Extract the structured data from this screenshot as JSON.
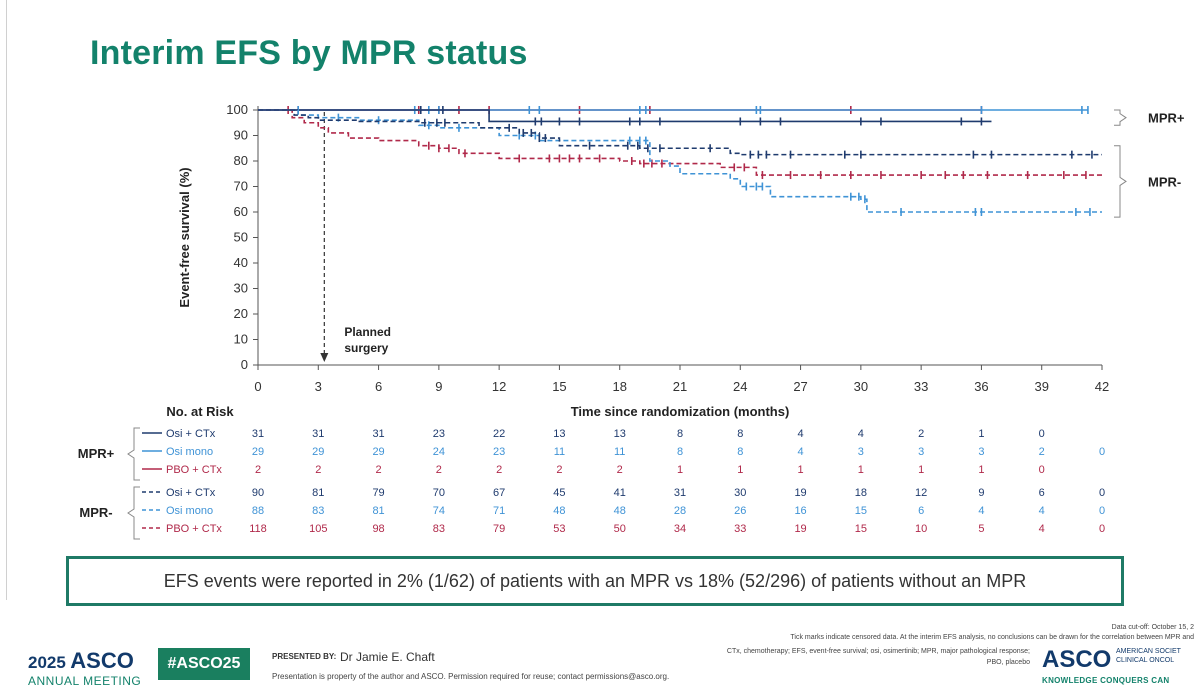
{
  "slide": {
    "title": "Interim EFS by MPR status",
    "callout": "EFS events were reported in 2% (1/62) of patients with an MPR vs 18% (52/296) of patients without an MPR",
    "data_cutoff": "Data cut-off: October 15, 2",
    "tick_note": "Tick marks indicate censored data. At the interim EFS analysis, no conclusions can be drawn for the correlation between MPR and",
    "abbrev_line1": "CTx, chemotherapy; EFS, event-free survival; osi, osimertinib; MPR, major pathological response;",
    "abbrev_line2": "PBO, placebo"
  },
  "footer": {
    "year": "2025",
    "asco": "ASCO",
    "annual_meeting": "ANNUAL MEETING",
    "hashtag": "#ASCO25",
    "presented_by": "PRESENTED BY:",
    "presenter": "Dr Jamie E. Chaft",
    "property": "Presentation is property of the author and ASCO. Permission required for reuse; contact permissions@asco.org.",
    "asco_right": "ASCO",
    "asco_right_sub1": "AMERICAN SOCIET",
    "asco_right_sub2": "CLINICAL ONCOL",
    "knowledge": "KNOWLEDGE CONQUERS CAN"
  },
  "colors": {
    "title_green": "#13826b",
    "osi_ctx": "#1f3b6e",
    "osi_mono": "#3f93d6",
    "pbo_ctx": "#b0294a"
  },
  "chart_data": {
    "type": "line",
    "ylabel": "Event-free survival (%)",
    "xlabel": "Time since randomization (months)",
    "xlim": [
      0,
      42
    ],
    "ylim": [
      0,
      100
    ],
    "xticks": [
      "0",
      "3",
      "6",
      "9",
      "12",
      "15",
      "18",
      "21",
      "24",
      "27",
      "30",
      "33",
      "36",
      "39",
      "42"
    ],
    "yticks": [
      "0",
      "10",
      "20",
      "30",
      "40",
      "50",
      "60",
      "70",
      "80",
      "90",
      "100"
    ],
    "annotation": "Planned surgery",
    "annotation_x": 3.3,
    "groups": [
      {
        "label": "MPR+",
        "y_range": [
          94,
          100
        ]
      },
      {
        "label": "MPR-",
        "y_range": [
          58,
          86
        ]
      }
    ],
    "series": [
      {
        "name": "Osi + CTx",
        "group": "MPR+",
        "dash": false,
        "color": "#1f3b6e",
        "steps": [
          [
            0,
            100
          ],
          [
            11.5,
            100
          ],
          [
            11.5,
            95.5
          ],
          [
            36.5,
            95.5
          ]
        ],
        "censors": [
          8.1,
          9.2,
          13.8,
          14.1,
          15,
          16,
          18.5,
          19,
          20,
          24,
          25,
          26,
          30,
          31,
          35,
          36
        ]
      },
      {
        "name": "Osi mono",
        "group": "MPR+",
        "dash": false,
        "color": "#3f93d6",
        "steps": [
          [
            0,
            100
          ],
          [
            41.3,
            100
          ]
        ],
        "censors": [
          2,
          7.8,
          8.5,
          9,
          13.5,
          14,
          19,
          19.3,
          24.8,
          25,
          36,
          41,
          41.3
        ]
      },
      {
        "name": "PBO + CTx",
        "group": "MPR+",
        "dash": false,
        "color": "#b0294a",
        "steps": [
          [
            0,
            100
          ],
          [
            36,
            100
          ]
        ],
        "censors": [
          1.5,
          2,
          8,
          9,
          10,
          11.5,
          16,
          19.5,
          29.5,
          36
        ]
      },
      {
        "name": "Osi + CTx",
        "group": "MPR-",
        "dash": true,
        "color": "#1f3b6e",
        "steps": [
          [
            0,
            100
          ],
          [
            1.8,
            100
          ],
          [
            1.8,
            98
          ],
          [
            2.5,
            97
          ],
          [
            3,
            96
          ],
          [
            5,
            95.5
          ],
          [
            8,
            95
          ],
          [
            11,
            93
          ],
          [
            13,
            91
          ],
          [
            14,
            89
          ],
          [
            15,
            86
          ],
          [
            18,
            86
          ],
          [
            19,
            85
          ],
          [
            21,
            85
          ],
          [
            23.5,
            83
          ],
          [
            24,
            82.5
          ],
          [
            42,
            82.5
          ]
        ],
        "censors": [
          8.3,
          8.9,
          9.3,
          12.5,
          13.2,
          13.6,
          14,
          14.3,
          16.5,
          18.4,
          18.9,
          19.4,
          20,
          22.5,
          24.5,
          24.9,
          25.3,
          26.5,
          29.2,
          30,
          35.6,
          36.5,
          40.5,
          41.5
        ]
      },
      {
        "name": "Osi mono",
        "group": "MPR-",
        "dash": true,
        "color": "#3f93d6",
        "steps": [
          [
            0,
            100
          ],
          [
            2,
            98
          ],
          [
            3,
            97
          ],
          [
            5,
            96
          ],
          [
            8,
            94
          ],
          [
            9,
            93
          ],
          [
            12,
            90
          ],
          [
            14,
            88
          ],
          [
            16,
            88
          ],
          [
            19.5,
            88
          ],
          [
            19.5,
            80
          ],
          [
            20.5,
            78
          ],
          [
            21,
            75
          ],
          [
            22.5,
            75
          ],
          [
            23.5,
            73
          ],
          [
            24,
            70
          ],
          [
            25,
            70
          ],
          [
            25.5,
            66
          ],
          [
            28,
            66
          ],
          [
            30,
            65
          ],
          [
            30.3,
            60
          ],
          [
            42,
            60
          ]
        ],
        "censors": [
          4,
          6,
          8.5,
          10,
          13,
          13.8,
          18.5,
          19,
          19.3,
          24.3,
          24.8,
          25.1,
          29.5,
          29.9,
          30.2,
          32,
          35.7,
          36,
          40.7,
          41.4
        ]
      },
      {
        "name": "PBO + CTx",
        "group": "MPR-",
        "dash": true,
        "color": "#b0294a",
        "steps": [
          [
            0,
            100
          ],
          [
            1.6,
            100
          ],
          [
            1.7,
            97
          ],
          [
            2.3,
            95
          ],
          [
            3,
            93
          ],
          [
            3.5,
            91
          ],
          [
            4.5,
            89
          ],
          [
            6,
            88
          ],
          [
            8,
            86
          ],
          [
            9,
            85
          ],
          [
            10,
            83
          ],
          [
            12,
            81
          ],
          [
            14,
            81
          ],
          [
            16,
            81
          ],
          [
            18,
            80
          ],
          [
            19,
            79
          ],
          [
            21,
            79
          ],
          [
            23,
            77.5
          ],
          [
            24.5,
            77.5
          ],
          [
            24.8,
            74.5
          ],
          [
            42,
            74.5
          ]
        ],
        "censors": [
          8.5,
          9,
          9.5,
          10.3,
          13,
          14.5,
          15,
          15.5,
          16,
          17,
          18.6,
          19.2,
          19.6,
          20.1,
          23.7,
          24.2,
          25.1,
          26.5,
          28,
          29.5,
          31,
          33,
          34.2,
          35.1,
          36.3,
          38.3,
          40.1,
          41.2
        ]
      }
    ],
    "risk_table": {
      "header": "No. at Risk",
      "times": [
        0,
        3,
        6,
        9,
        12,
        15,
        18,
        21,
        24,
        27,
        30,
        33,
        36,
        39,
        42
      ],
      "rows": [
        {
          "group": "MPR+",
          "label": "Osi + CTx",
          "dash": false,
          "color": "#1f3b6e",
          "counts": [
            "31",
            "31",
            "31",
            "23",
            "22",
            "13",
            "13",
            "8",
            "8",
            "4",
            "4",
            "2",
            "1",
            "0",
            ""
          ]
        },
        {
          "group": "MPR+",
          "label": "Osi mono",
          "dash": false,
          "color": "#3f93d6",
          "counts": [
            "29",
            "29",
            "29",
            "24",
            "23",
            "11",
            "11",
            "8",
            "8",
            "4",
            "3",
            "3",
            "3",
            "2",
            "0"
          ]
        },
        {
          "group": "MPR+",
          "label": "PBO + CTx",
          "dash": false,
          "color": "#b0294a",
          "counts": [
            "2",
            "2",
            "2",
            "2",
            "2",
            "2",
            "2",
            "1",
            "1",
            "1",
            "1",
            "1",
            "1",
            "0",
            ""
          ]
        },
        {
          "group": "MPR-",
          "label": "Osi + CTx",
          "dash": true,
          "color": "#1f3b6e",
          "counts": [
            "90",
            "81",
            "79",
            "70",
            "67",
            "45",
            "41",
            "31",
            "30",
            "19",
            "18",
            "12",
            "9",
            "6",
            "0"
          ]
        },
        {
          "group": "MPR-",
          "label": "Osi mono",
          "dash": true,
          "color": "#3f93d6",
          "counts": [
            "88",
            "83",
            "81",
            "74",
            "71",
            "48",
            "48",
            "28",
            "26",
            "16",
            "15",
            "6",
            "4",
            "4",
            "0"
          ]
        },
        {
          "group": "MPR-",
          "label": "PBO + CTx",
          "dash": true,
          "color": "#b0294a",
          "counts": [
            "118",
            "105",
            "98",
            "83",
            "79",
            "53",
            "50",
            "34",
            "33",
            "19",
            "15",
            "10",
            "5",
            "4",
            "0"
          ]
        }
      ]
    }
  }
}
